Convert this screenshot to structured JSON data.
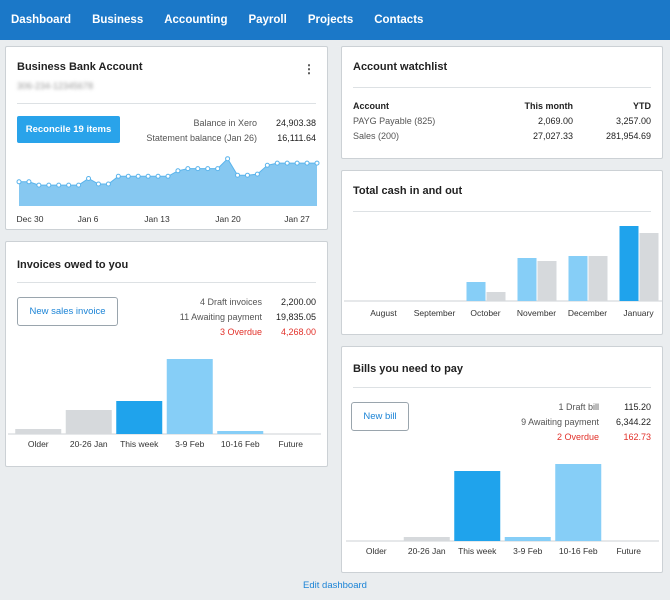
{
  "nav": [
    "Dashboard",
    "Business",
    "Accounting",
    "Payroll",
    "Projects",
    "Contacts"
  ],
  "bank": {
    "title": "Business Bank Account",
    "account_number": "306-234-12345678",
    "reconcile_label": "Reconcile 19 items",
    "balance_label": "Balance in Xero",
    "balance": "24,903.38",
    "statement_label": "Statement balance (Jan 26)",
    "statement": "16,111.64",
    "x_labels": [
      "Dec 30",
      "Jan 6",
      "Jan 13",
      "Jan 20",
      "Jan 27"
    ],
    "chart_data": {
      "type": "area",
      "x_labels": [
        "Dec 30",
        "Jan 6",
        "Jan 13",
        "Jan 20",
        "Jan 27"
      ],
      "values": [
        22,
        22,
        19,
        19,
        19,
        19,
        19,
        25,
        20,
        20,
        27,
        27,
        27,
        27,
        27,
        27,
        32,
        34,
        34,
        34,
        34,
        43,
        28,
        28,
        29,
        37,
        39,
        39,
        39,
        39,
        39
      ],
      "color": "#86c8f1"
    }
  },
  "invoices": {
    "title": "Invoices owed to you",
    "button": "New sales invoice",
    "rows": [
      {
        "label": "4 Draft invoices",
        "value": "2,200.00"
      },
      {
        "label": "11 Awaiting payment",
        "value": "19,835.05"
      },
      {
        "label": "3 Overdue",
        "value": "4,268.00",
        "overdue": true
      }
    ],
    "chart_data": {
      "type": "bar",
      "categories": [
        "Older",
        "20-26 Jan",
        "This week",
        "3-9 Feb",
        "10-16 Feb",
        "Future"
      ],
      "values": [
        5,
        24,
        33,
        75,
        3,
        0
      ],
      "colors": [
        "#d6d9dc",
        "#d6d9dc",
        "#1fa3ec",
        "#86cef7",
        "#86cef7",
        "#86cef7"
      ]
    }
  },
  "watchlist": {
    "title": "Account watchlist",
    "headers": [
      "Account",
      "This month",
      "YTD"
    ],
    "rows": [
      [
        "PAYG Payable (825)",
        "2,069.00",
        "3,257.00"
      ],
      [
        "Sales (200)",
        "27,027.33",
        "281,954.69"
      ]
    ]
  },
  "cash": {
    "title": "Total cash in and out",
    "chart_data": {
      "type": "bar",
      "categories": [
        "August",
        "September",
        "October",
        "November",
        "December",
        "January"
      ],
      "series": [
        {
          "values": [
            0,
            0,
            19,
            43,
            45,
            75
          ],
          "colors": [
            "#86cef7",
            "#86cef7",
            "#86cef7",
            "#86cef7",
            "#86cef7",
            "#1fa3ec"
          ]
        },
        {
          "values": [
            0,
            0,
            9,
            40,
            45,
            68
          ],
          "color": "#d6d9dc"
        }
      ]
    }
  },
  "bills": {
    "title": "Bills you need to pay",
    "button": "New bill",
    "rows": [
      {
        "label": "1 Draft bill",
        "value": "115.20"
      },
      {
        "label": "9 Awaiting payment",
        "value": "6,344.22"
      },
      {
        "label": "2 Overdue",
        "value": "162.73",
        "overdue": true
      }
    ],
    "chart_data": {
      "type": "bar",
      "categories": [
        "Older",
        "20-26 Jan",
        "This week",
        "3-9 Feb",
        "10-16 Feb",
        "Future"
      ],
      "values": [
        0,
        4,
        70,
        4,
        77,
        0
      ],
      "colors": [
        "#d6d9dc",
        "#d6d9dc",
        "#1fa3ec",
        "#86cef7",
        "#86cef7",
        "#86cef7"
      ]
    }
  },
  "edit_dashboard": "Edit dashboard"
}
